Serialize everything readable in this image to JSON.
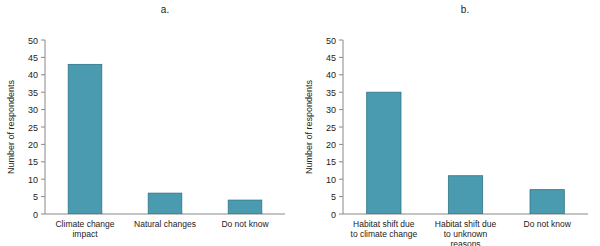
{
  "chart_data": [
    {
      "type": "bar",
      "title": "a.",
      "y_label": "Number of respondents",
      "categories": [
        "Climate change impact",
        "Natural changes",
        "Do not know"
      ],
      "values": [
        43,
        6,
        4
      ],
      "color": "#4a9bb0",
      "ylim": [
        0,
        50
      ],
      "yticks": [
        0,
        5,
        10,
        15,
        20,
        25,
        30,
        35,
        40,
        45,
        50
      ],
      "grid": false
    },
    {
      "type": "bar",
      "title": "b.",
      "y_label": "Number of respondents",
      "categories": [
        "Habitat shift due to climate change",
        "Habitat shift due to unknown reasons",
        "Do not know"
      ],
      "values": [
        35,
        11,
        7
      ],
      "color": "#4a9bb0",
      "ylim": [
        0,
        50
      ],
      "yticks": [
        0,
        5,
        10,
        15,
        20,
        25,
        30,
        35,
        40,
        45,
        50
      ],
      "grid": false
    }
  ]
}
